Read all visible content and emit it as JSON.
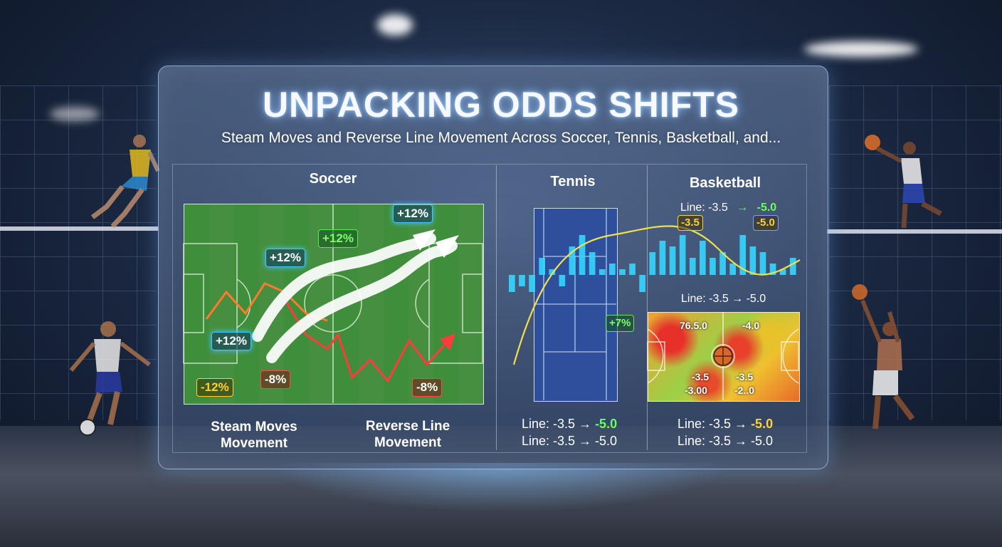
{
  "title": "UNPACKING ODDS SHIFTS",
  "subtitle": "Steam Moves and Reverse Line Movement Across Soccer, Tennis, Basketball, and...",
  "sections": {
    "soccer": {
      "title": "Soccer",
      "tags": {
        "a": "+12%",
        "b": "+12%",
        "c": "+12%",
        "d": "+12%",
        "neg_a": "-12%",
        "neg_b": "-8%",
        "neg_c": "-8%"
      },
      "label_left_1": "Steam Moves",
      "label_left_2": "Movement",
      "label_right_1": "Reverse Line",
      "label_right_2": "Movement"
    },
    "tennis": {
      "title": "Tennis",
      "tag": "+7%",
      "line1_prefix": "Line: -3.5 → ",
      "line1_value": "-5.0",
      "line2": "Line: -3.5 → -5.0"
    },
    "basketball": {
      "title": "Basketball",
      "top_line_prefix": "Line: -3.5",
      "top_line_arrow": "→",
      "top_line_value": "-5.0",
      "tag_left": "-3.5",
      "tag_right": "-5.0",
      "heat_label": "Line: -3.5 → -5.0",
      "heat_values": {
        "tl": "76.5.0",
        "tr": "-4.0",
        "bl1": "-3.5",
        "bl2": "-3.00",
        "br1": "-3.5",
        "br2": "-2..0"
      },
      "line1_prefix": "Line: -3.5 → ",
      "line1_value": "-5.0",
      "line2": "Line: -3.5 → -5.0"
    }
  },
  "colors": {
    "steam": "#ff7a2a",
    "reverse": "#ff3b3b",
    "bars": "#35d6ff",
    "curve": "#f2e04a"
  },
  "bar_values": [
    -3,
    -2,
    -3,
    3,
    1,
    -2,
    5,
    7,
    4,
    1,
    2,
    1,
    2,
    -3,
    4,
    6,
    5,
    7,
    3,
    6,
    3,
    4,
    2,
    7,
    5,
    4,
    2,
    1,
    3
  ]
}
